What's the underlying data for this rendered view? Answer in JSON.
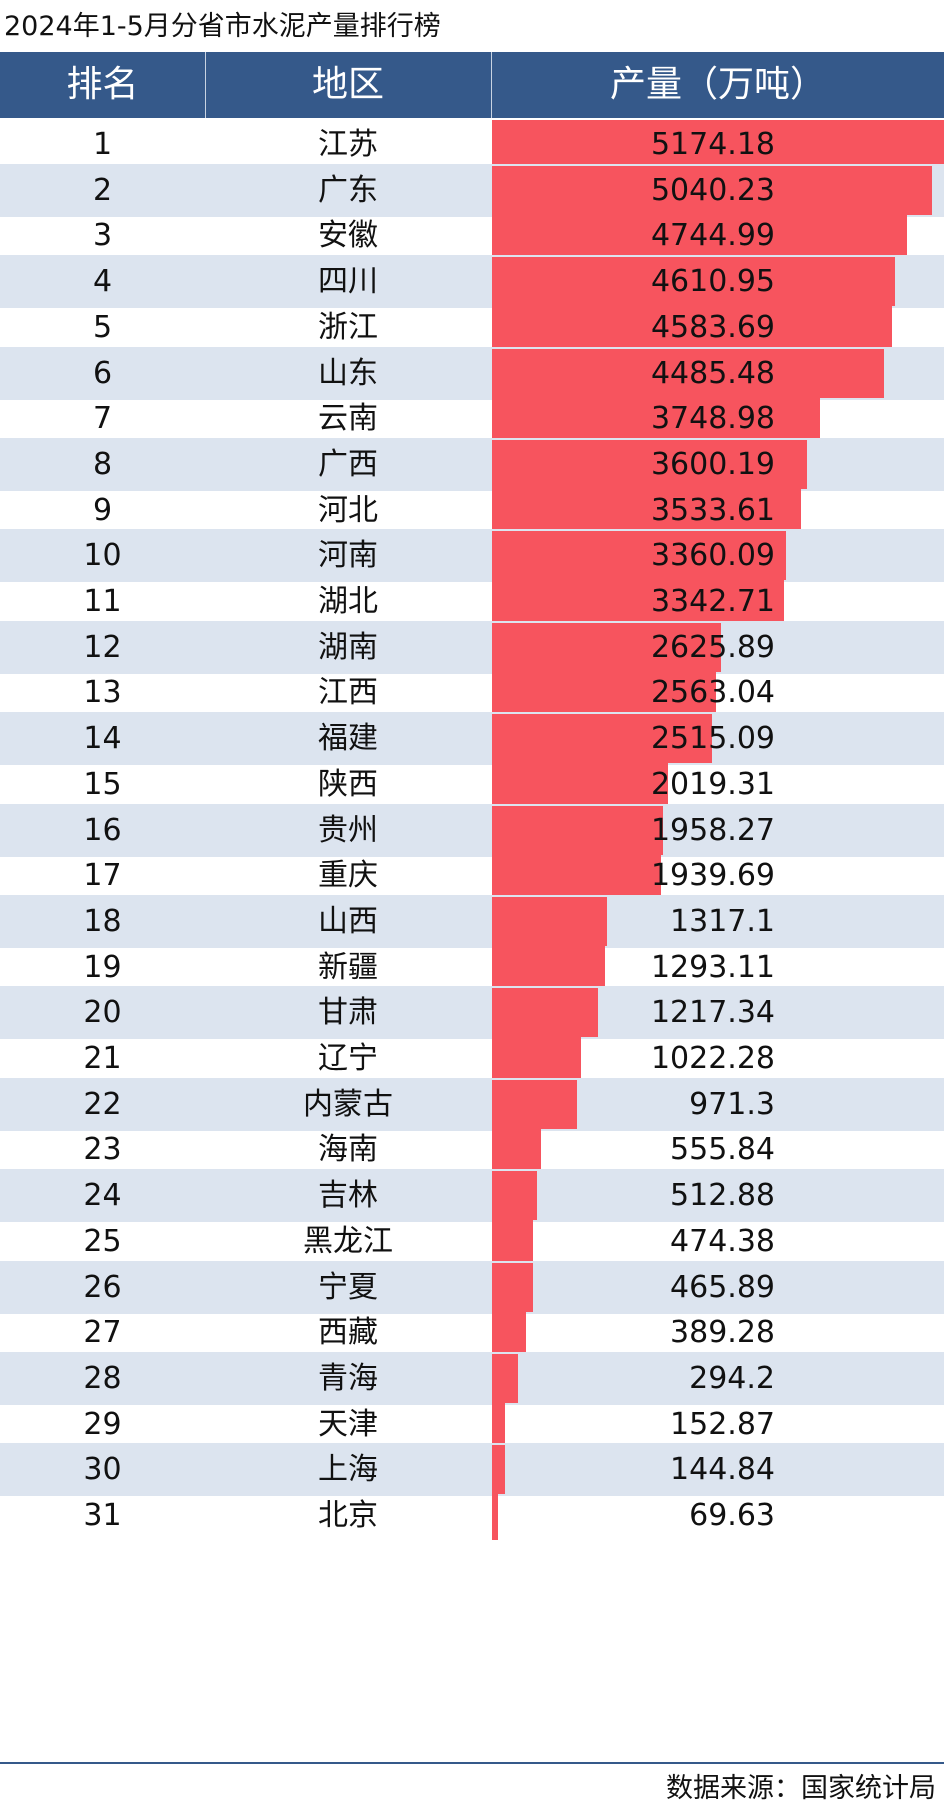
{
  "title": "2024年1-5月分省市水泥产量排行榜",
  "source": "数据来源：国家统计局",
  "colors": {
    "header_bg": "#35598a",
    "bar": "#f7545e",
    "row_alt": "#dce4ef"
  },
  "chart_data": {
    "type": "table",
    "title": "2024年1-5月分省市水泥产量排行榜",
    "columns": [
      "排名",
      "地区",
      "产量（万吨）"
    ],
    "rows": [
      {
        "rank": "1",
        "region": "江苏",
        "value": "5174.18"
      },
      {
        "rank": "2",
        "region": "广东",
        "value": "5040.23"
      },
      {
        "rank": "3",
        "region": "安徽",
        "value": "4744.99"
      },
      {
        "rank": "4",
        "region": "四川",
        "value": "4610.95"
      },
      {
        "rank": "5",
        "region": "浙江",
        "value": "4583.69"
      },
      {
        "rank": "6",
        "region": "山东",
        "value": "4485.48"
      },
      {
        "rank": "7",
        "region": "云南",
        "value": "3748.98"
      },
      {
        "rank": "8",
        "region": "广西",
        "value": "3600.19"
      },
      {
        "rank": "9",
        "region": "河北",
        "value": "3533.61"
      },
      {
        "rank": "10",
        "region": "河南",
        "value": "3360.09"
      },
      {
        "rank": "11",
        "region": "湖北",
        "value": "3342.71"
      },
      {
        "rank": "12",
        "region": "湖南",
        "value": "2625.89"
      },
      {
        "rank": "13",
        "region": "江西",
        "value": "2563.04"
      },
      {
        "rank": "14",
        "region": "福建",
        "value": "2515.09"
      },
      {
        "rank": "15",
        "region": "陕西",
        "value": "2019.31"
      },
      {
        "rank": "16",
        "region": "贵州",
        "value": "1958.27"
      },
      {
        "rank": "17",
        "region": "重庆",
        "value": "1939.69"
      },
      {
        "rank": "18",
        "region": "山西",
        "value": "1317.1"
      },
      {
        "rank": "19",
        "region": "新疆",
        "value": "1293.11"
      },
      {
        "rank": "20",
        "region": "甘肃",
        "value": "1217.34"
      },
      {
        "rank": "21",
        "region": "辽宁",
        "value": "1022.28"
      },
      {
        "rank": "22",
        "region": "内蒙古",
        "value": "971.3"
      },
      {
        "rank": "23",
        "region": "海南",
        "value": "555.84"
      },
      {
        "rank": "24",
        "region": "吉林",
        "value": "512.88"
      },
      {
        "rank": "25",
        "region": "黑龙江",
        "value": "474.38"
      },
      {
        "rank": "26",
        "region": "宁夏",
        "value": "465.89"
      },
      {
        "rank": "27",
        "region": "西藏",
        "value": "389.28"
      },
      {
        "rank": "28",
        "region": "青海",
        "value": "294.2"
      },
      {
        "rank": "29",
        "region": "天津",
        "value": "152.87"
      },
      {
        "rank": "30",
        "region": "上海",
        "value": "144.84"
      },
      {
        "rank": "31",
        "region": "北京",
        "value": "69.63"
      }
    ]
  }
}
